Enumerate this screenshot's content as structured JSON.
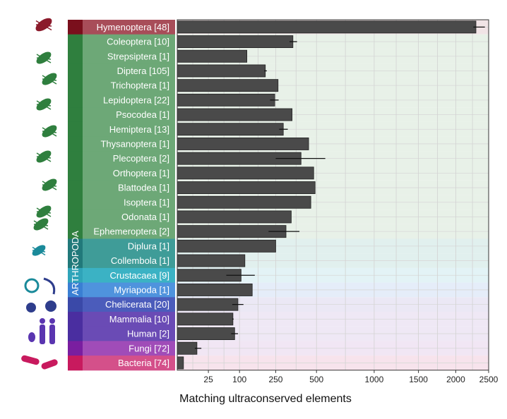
{
  "chart_data": {
    "type": "bar",
    "orientation": "horizontal",
    "x_scale": "sqrt",
    "xlabel": "Matching ultraconserved elements",
    "xlim": [
      0,
      2500
    ],
    "xticks": [
      25,
      100,
      250,
      500,
      1000,
      1500,
      2000,
      2500
    ],
    "grid": true,
    "group_label": "ARTHROPODA",
    "categories": [
      "Hymenoptera [48]",
      "Coleoptera [10]",
      "Strepsiptera [1]",
      "Diptera [105]",
      "Trichoptera [1]",
      "Lepidoptera [22]",
      "Psocodea [1]",
      "Hemiptera [13]",
      "Thysanoptera [1]",
      "Plecoptera [2]",
      "Orthoptera [1]",
      "Blattodea [1]",
      "Isoptera [1]",
      "Odonata [1]",
      "Ephemeroptera [2]",
      "Diplura [1]",
      "Collembola [1]",
      "Crustacaea [9]",
      "Myriapoda [1]",
      "Chelicerata [20]",
      "Mammalia [10]",
      "Human [2]",
      "Fungi [72]",
      "Bacteria [74]"
    ],
    "values": [
      2300,
      345,
      125,
      200,
      262,
      245,
      340,
      290,
      445,
      395,
      480,
      490,
      460,
      335,
      305,
      250,
      118,
      105,
      145,
      95,
      80,
      85,
      10,
      1
    ],
    "error_low": [
      2260,
      325,
      125,
      195,
      262,
      222,
      340,
      268,
      445,
      250,
      480,
      490,
      460,
      335,
      215,
      250,
      118,
      62,
      145,
      78,
      78,
      75,
      8,
      1
    ],
    "error_high": [
      2440,
      370,
      125,
      207,
      262,
      265,
      340,
      315,
      445,
      565,
      480,
      490,
      460,
      335,
      385,
      250,
      118,
      155,
      145,
      113,
      82,
      95,
      15,
      1
    ],
    "row_colors": [
      "#a84d59",
      "#6da877",
      "#6da877",
      "#6da877",
      "#6da877",
      "#6da877",
      "#6da877",
      "#6da877",
      "#6da877",
      "#6da877",
      "#6da877",
      "#6da877",
      "#6da877",
      "#6da877",
      "#6da877",
      "#3f9c98",
      "#3f9c98",
      "#3bb2c4",
      "#4f93dd",
      "#4b5cbb",
      "#6a4bb5",
      "#6a4bb5",
      "#a04cb8",
      "#d4508a"
    ],
    "group_bar_colors": [
      "#7a0f1c",
      "#2f7f3e",
      "#2f7f3e",
      "#2f7f3e",
      "#2f7f3e",
      "#2f7f3e",
      "#2f7f3e",
      "#2f7f3e",
      "#2f7f3e",
      "#2f7f3e",
      "#2f7f3e",
      "#2f7f3e",
      "#2f7f3e",
      "#2f7f3e",
      "#2f7f3e",
      "#21797a",
      "#21797a",
      "#2fa4b9",
      "#3a7fd3",
      "#3a49a8",
      "#4a2ea0",
      "#4a2ea0",
      "#7a1ea0",
      "#c81a5e"
    ],
    "band_colors": [
      "#f1e4e6",
      "#e8f1e8",
      "#e8f1e8",
      "#e8f1e8",
      "#e8f1e8",
      "#e8f1e8",
      "#e8f1e8",
      "#e8f1e8",
      "#e8f1e8",
      "#e8f1e8",
      "#e8f1e8",
      "#e8f1e8",
      "#e8f1e8",
      "#e8f1e8",
      "#e8f1e8",
      "#e1f0ee",
      "#e1f0ee",
      "#e3f3f6",
      "#e5edf9",
      "#ebe8f5",
      "#efe8f5",
      "#efe8f5",
      "#f1e6f4",
      "#f7e3ec"
    ],
    "bar_color": "#4a4a4a",
    "organism_icon_color": [
      "#8b1a2b",
      "#2f7f3e",
      "#1a8a9a",
      "#2e3d8c",
      "#5a35b0",
      "#c81a5e"
    ]
  }
}
